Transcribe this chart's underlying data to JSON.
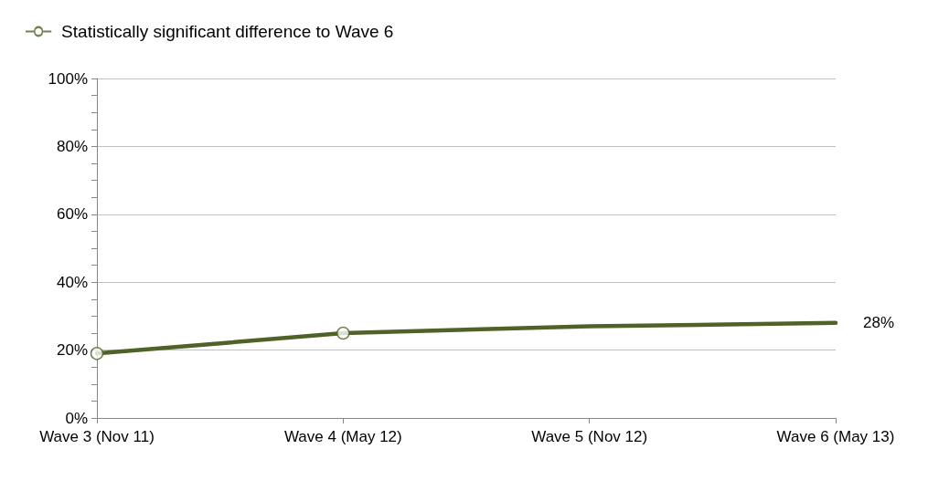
{
  "chart_data": {
    "type": "line",
    "categories": [
      "Wave 3 (Nov 11)",
      "Wave 4 (May 12)",
      "Wave 5 (Nov 12)",
      "Wave 6 (May 13)"
    ],
    "series": [
      {
        "color": "#4f6228",
        "values": [
          19,
          25,
          27,
          28
        ],
        "marker": "none",
        "value_labels": [
          null,
          null,
          null,
          "28%"
        ]
      },
      {
        "type": "scatter",
        "name": "Statistically significant difference to Wave 6",
        "color": "#4f6228",
        "values": [
          19,
          25,
          null,
          null
        ],
        "marker": "circle"
      }
    ],
    "ylim": [
      0,
      100
    ],
    "yticks": [
      {
        "value": 0,
        "label": "0%"
      },
      {
        "value": 5,
        "label": null
      },
      {
        "value": 10,
        "label": null
      },
      {
        "value": 15,
        "label": null
      },
      {
        "value": 20,
        "label": "20%"
      },
      {
        "value": 25,
        "label": null
      },
      {
        "value": 30,
        "label": null
      },
      {
        "value": 35,
        "label": null
      },
      {
        "value": 40,
        "label": "40%"
      },
      {
        "value": 45,
        "label": null
      },
      {
        "value": 50,
        "label": null
      },
      {
        "value": 55,
        "label": null
      },
      {
        "value": 60,
        "label": "60%"
      },
      {
        "value": 65,
        "label": null
      },
      {
        "value": 70,
        "label": null
      },
      {
        "value": 75,
        "label": null
      },
      {
        "value": 80,
        "label": "80%"
      },
      {
        "value": 85,
        "label": null
      },
      {
        "value": 90,
        "label": null
      },
      {
        "value": 95,
        "label": null
      },
      {
        "value": 100,
        "label": "100%"
      }
    ],
    "grid": "y",
    "legend": "top left",
    "line_style": "solid"
  }
}
